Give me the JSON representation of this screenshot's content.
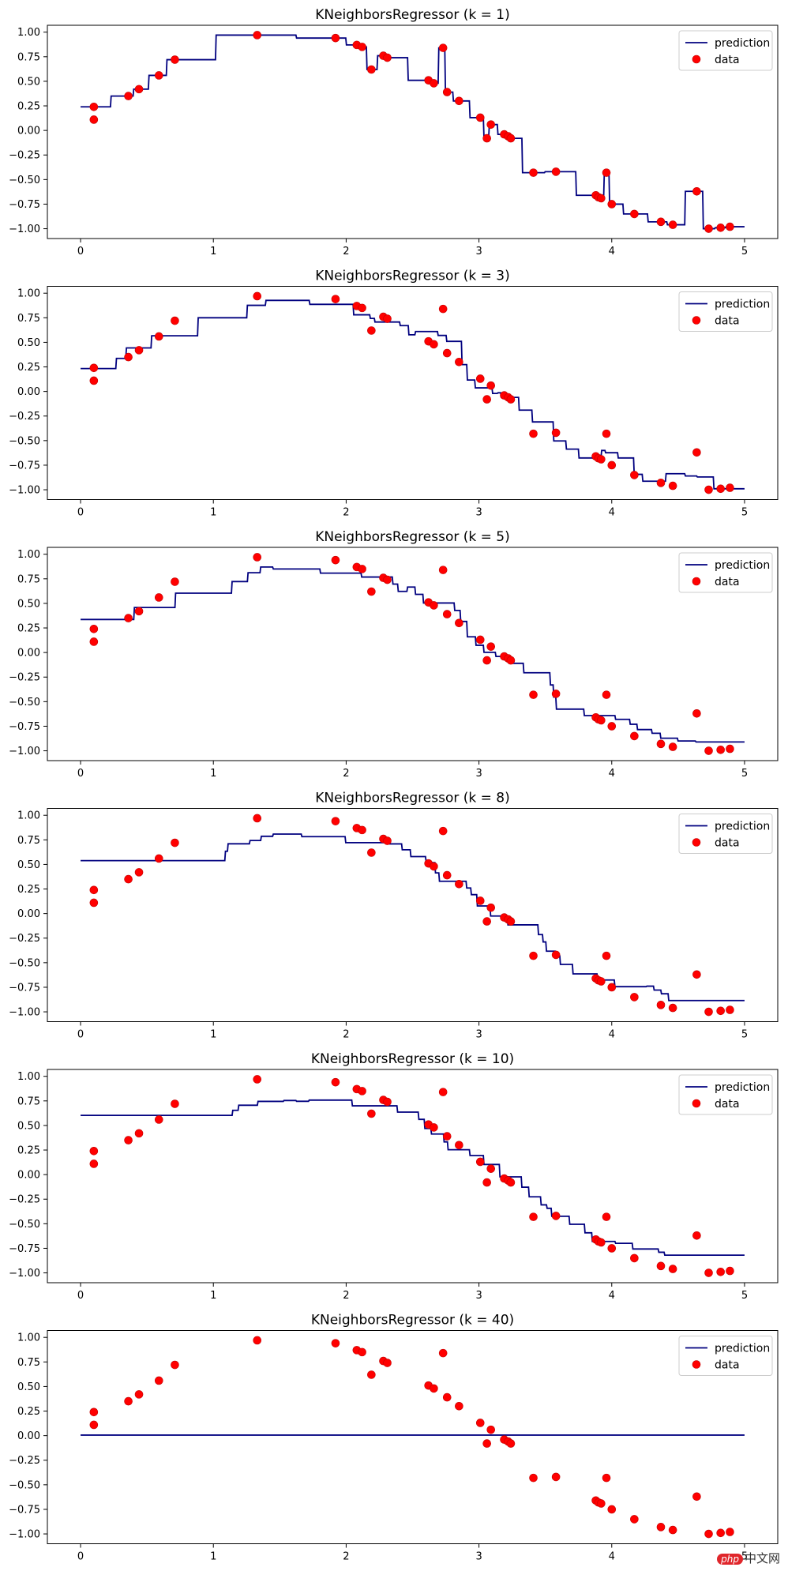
{
  "chart_data": {
    "type": "line",
    "data": {
      "x": [
        0.1,
        0.1,
        0.36,
        0.44,
        0.59,
        0.71,
        1.33,
        1.92,
        2.08,
        2.12,
        2.19,
        2.28,
        2.31,
        2.62,
        2.66,
        2.73,
        2.76,
        2.85,
        3.01,
        3.06,
        3.09,
        3.19,
        3.22,
        3.24,
        3.41,
        3.58,
        3.88,
        3.9,
        3.92,
        3.96,
        4.0,
        4.17,
        4.37,
        4.46,
        4.64,
        4.73,
        4.82,
        4.89
      ],
      "y": [
        0.24,
        0.11,
        0.35,
        0.42,
        0.56,
        0.72,
        0.97,
        0.94,
        0.87,
        0.85,
        0.62,
        0.76,
        0.74,
        0.51,
        0.48,
        0.84,
        0.39,
        0.3,
        0.13,
        -0.08,
        0.06,
        -0.04,
        -0.06,
        -0.08,
        -0.43,
        -0.42,
        -0.66,
        -0.68,
        -0.69,
        -0.43,
        -0.75,
        -0.85,
        -0.93,
        -0.96,
        -0.62,
        -1.0,
        -0.99,
        -0.98
      ]
    },
    "prediction_x_range": [
      0,
      5
    ],
    "panels": [
      {
        "title": "KNeighborsRegressor (k = 1)",
        "k": 1
      },
      {
        "title": "KNeighborsRegressor (k = 3)",
        "k": 3
      },
      {
        "title": "KNeighborsRegressor (k = 5)",
        "k": 5
      },
      {
        "title": "KNeighborsRegressor (k = 8)",
        "k": 8
      },
      {
        "title": "KNeighborsRegressor (k = 10)",
        "k": 10
      },
      {
        "title": "KNeighborsRegressor (k = 40)",
        "k": 40
      }
    ],
    "xlim": [
      -0.25,
      5.25
    ],
    "ylim": [
      -1.1,
      1.07
    ],
    "x_ticks": [
      0,
      1,
      2,
      3,
      4,
      5
    ],
    "x_tick_labels": [
      "0",
      "1",
      "2",
      "3",
      "4",
      "5"
    ],
    "y_ticks": [
      1.0,
      0.75,
      0.5,
      0.25,
      0.0,
      -0.25,
      -0.5,
      -0.75,
      -1.0
    ],
    "y_tick_labels": [
      "1.00",
      "0.75",
      "0.50",
      "0.25",
      "0.00",
      "−0.25",
      "−0.50",
      "−0.75",
      "−1.00"
    ],
    "legend": {
      "position": "top-right",
      "entries": [
        "prediction",
        "data"
      ]
    },
    "grid": false,
    "colors": {
      "prediction": "#00007f",
      "data": "#ff0000",
      "data_edge": "#c00000",
      "axes": "#000000"
    }
  },
  "watermark": {
    "badge": "php",
    "text": "中文网"
  }
}
